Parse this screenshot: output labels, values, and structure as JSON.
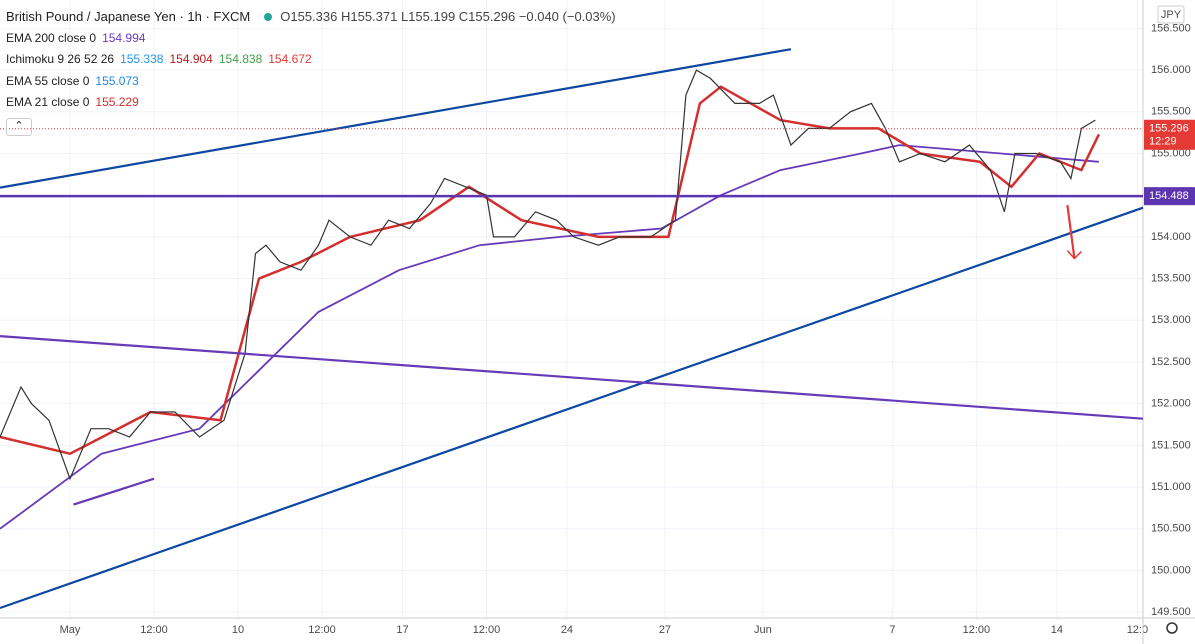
{
  "chart_data": {
    "type": "line",
    "title": "British Pound / Japanese Yen · 1h · FXCM",
    "ohlc": "O155.336 H155.371 L155.199 C155.296 −0.040 (−0.03%)",
    "currency": "JPY",
    "xlim": [
      0,
      326.6
    ],
    "ylim": [
      149.43,
      156.84
    ],
    "xticks": [
      {
        "value": 20,
        "label": "May"
      },
      {
        "value": 44,
        "label": "12:00"
      },
      {
        "value": 68,
        "label": "10"
      },
      {
        "value": 92,
        "label": "12:00"
      },
      {
        "value": 115,
        "label": "17"
      },
      {
        "value": 139,
        "label": "12:00"
      },
      {
        "value": 162,
        "label": "24"
      },
      {
        "value": 190,
        "label": "27"
      },
      {
        "value": 218,
        "label": "Jun"
      },
      {
        "value": 255,
        "label": "7"
      },
      {
        "value": 279,
        "label": "12:00"
      },
      {
        "value": 302,
        "label": "14"
      },
      {
        "value": 325,
        "label": "12:0"
      }
    ],
    "yticks": [
      {
        "value": 149.5,
        "label": "149.500"
      },
      {
        "value": 150,
        "label": "150.000"
      },
      {
        "value": 150.5,
        "label": "150.500"
      },
      {
        "value": 151,
        "label": "151.000"
      },
      {
        "value": 151.5,
        "label": "151.500"
      },
      {
        "value": 152,
        "label": "152.000"
      },
      {
        "value": 152.5,
        "label": "152.500"
      },
      {
        "value": 153,
        "label": "153.000"
      },
      {
        "value": 153.5,
        "label": "153.500"
      },
      {
        "value": 154,
        "label": "154.000"
      },
      {
        "value": 154.5,
        "label": "154.500"
      },
      {
        "value": 155,
        "label": "155.000"
      },
      {
        "value": 155.5,
        "label": "155.500"
      },
      {
        "value": 156,
        "label": "156.000"
      },
      {
        "value": 156.5,
        "label": "156.500"
      }
    ],
    "grid": true,
    "color": "#333333",
    "x": [
      0,
      6,
      9,
      14,
      20,
      26,
      31,
      37,
      43,
      50,
      57,
      64,
      70,
      73,
      76,
      80,
      86,
      91,
      94,
      100,
      106,
      111,
      117,
      123,
      127,
      133,
      139,
      141,
      147,
      153,
      159,
      164,
      171,
      177,
      186,
      193,
      196,
      199,
      203,
      210,
      217,
      221,
      226,
      231,
      237,
      243,
      249,
      253,
      257,
      263,
      270,
      277,
      283,
      287,
      290,
      296,
      303,
      306,
      309,
      313
    ],
    "values": [
      151.6,
      152.2,
      152.0,
      151.8,
      151.1,
      151.7,
      151.7,
      151.6,
      151.9,
      151.9,
      151.6,
      151.8,
      152.6,
      153.8,
      153.9,
      153.7,
      153.6,
      153.9,
      154.2,
      154.0,
      153.9,
      154.2,
      154.1,
      154.4,
      154.7,
      154.6,
      154.5,
      154.0,
      154.0,
      154.3,
      154.2,
      154.0,
      153.9,
      154.0,
      154.0,
      154.2,
      155.7,
      156.0,
      155.9,
      155.6,
      155.6,
      155.7,
      155.1,
      155.3,
      155.3,
      155.5,
      155.6,
      155.3,
      154.9,
      155.0,
      154.9,
      155.1,
      154.8,
      154.3,
      155.0,
      155.0,
      154.9,
      154.7,
      155.3,
      155.4
    ],
    "indicators": [
      {
        "name": "EMA 200 close 0",
        "last": [
          154.994
        ],
        "colors": [
          "#673ab7"
        ],
        "x": [
          0,
          29,
          57,
          74,
          91,
          114,
          137,
          160,
          189,
          206,
          223,
          246,
          257,
          286,
          314
        ],
        "line": [
          150.5,
          151.4,
          151.7,
          152.4,
          153.1,
          153.6,
          153.9,
          154.0,
          154.1,
          154.5,
          154.8,
          155.0,
          155.1,
          155.0,
          154.9
        ],
        "width": 1.8
      },
      {
        "name": "Ichimoku 9 26 52 26",
        "last": [
          155.338,
          154.904,
          154.838,
          154.672
        ],
        "colors": [
          "#2196f3",
          "#b71c1c",
          "#43a047",
          "#e53935"
        ]
      },
      {
        "name": "EMA 55 close 0",
        "last": [
          155.073
        ],
        "colors": [
          "#1e88e5"
        ]
      },
      {
        "name": "EMA 21 close 0",
        "last": [
          155.229
        ],
        "colors": [
          "#d32f2f"
        ],
        "x": [
          0,
          20,
          43,
          63,
          74,
          86,
          100,
          120,
          134,
          149,
          171,
          191,
          200,
          206,
          223,
          237,
          251,
          263,
          280,
          289,
          297,
          309,
          314
        ],
        "line": [
          151.6,
          151.4,
          151.9,
          151.8,
          153.5,
          153.7,
          154.0,
          154.2,
          154.6,
          154.2,
          154.0,
          154.0,
          155.6,
          155.8,
          155.4,
          155.3,
          155.3,
          155.0,
          154.9,
          154.6,
          155.0,
          154.8,
          155.23
        ],
        "width": 2.5
      }
    ],
    "drawings": [
      {
        "from": [
          0,
          154.59
        ],
        "to": [
          226,
          156.25
        ],
        "color": "#0d47a1"
      },
      {
        "from": [
          0,
          149.55
        ],
        "to": [
          326.6,
          154.35
        ],
        "color": "#0d47a1"
      },
      {
        "from": [
          0,
          152.81
        ],
        "to": [
          326.6,
          151.82
        ],
        "color": "#673ab7"
      },
      {
        "from": [
          21,
          150.79
        ],
        "to": [
          44,
          151.1
        ],
        "color": "#673ab7"
      },
      {
        "from": [
          305,
          154.38
        ],
        "to": [
          307,
          153.74
        ],
        "color": "#e53935"
      }
    ],
    "level": {
      "value": 154.488,
      "label": "154.488",
      "color": "#5e35b1"
    },
    "last_price": {
      "value": 155.296,
      "label": "155.296",
      "countdown": "12:29",
      "color": "#e53935"
    }
  }
}
